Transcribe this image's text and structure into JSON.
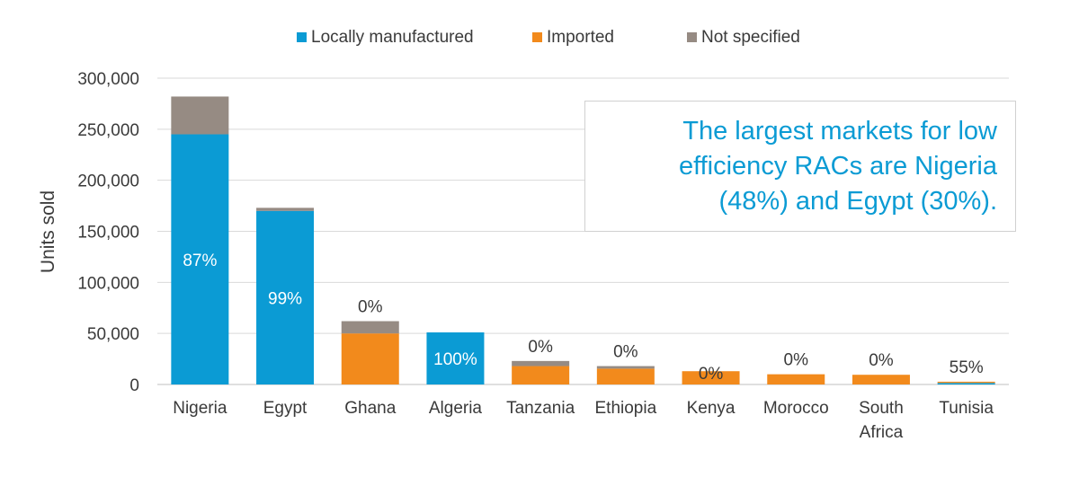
{
  "chart_data": {
    "type": "bar",
    "stacked": true,
    "categories": [
      "Nigeria",
      "Egypt",
      "Ghana",
      "Algeria",
      "Tanzania",
      "Ethiopia",
      "Kenya",
      "Morocco",
      "South Africa",
      "Tunisia"
    ],
    "series": [
      {
        "name": "Locally manufactured",
        "color": "#0b9bd4",
        "values": [
          245000,
          170000,
          0,
          51000,
          0,
          0,
          0,
          0,
          0,
          1500
        ]
      },
      {
        "name": "Imported",
        "color": "#f28a1c",
        "values": [
          0,
          0,
          50000,
          0,
          18000,
          15500,
          13000,
          10000,
          9500,
          1200
        ]
      },
      {
        "name": "Not specified",
        "color": "#968b83",
        "values": [
          37000,
          3000,
          12000,
          0,
          5000,
          2500,
          0,
          0,
          0,
          0
        ]
      }
    ],
    "data_labels": [
      "87%",
      "99%",
      "0%",
      "100%",
      "0%",
      "0%",
      "0%",
      "0%",
      "0%",
      "55%"
    ],
    "ylabel": "Units sold",
    "ylim": [
      0,
      300000
    ],
    "yticks": [
      0,
      50000,
      100000,
      150000,
      200000,
      250000,
      300000
    ],
    "ytick_labels": [
      "0",
      "50,000",
      "100,000",
      "150,000",
      "200,000",
      "250,000",
      "300,000"
    ],
    "grid": true,
    "legend_position": "top"
  },
  "callout": {
    "lines": [
      "The largest markets for low",
      "efficiency RACs are Nigeria",
      "(48%) and Egypt (30%)."
    ]
  }
}
